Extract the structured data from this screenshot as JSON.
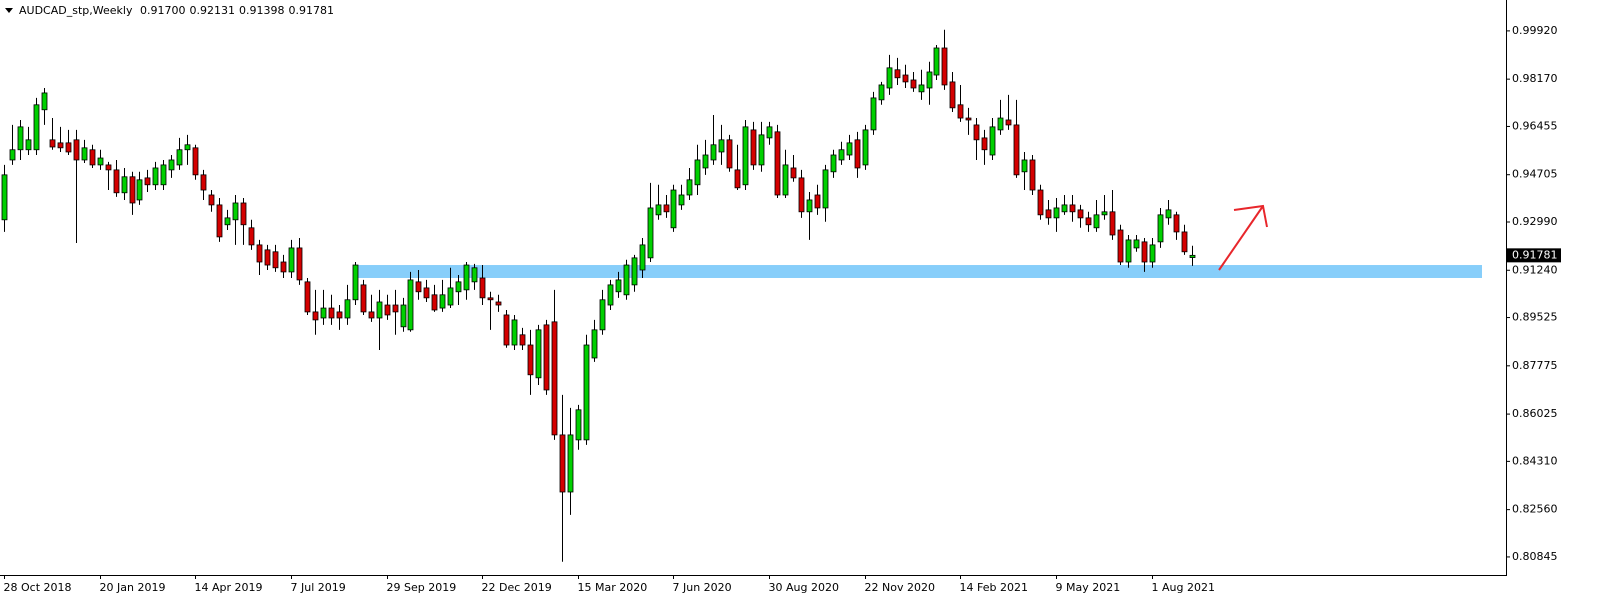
{
  "chart_data": {
    "type": "candlestick",
    "header": "AUDCAD_stp,Weekly",
    "header_values": [
      "0.91700",
      "0.92131",
      "0.91398",
      "0.91781"
    ],
    "up_color": "#00d000",
    "down_color": "#d40000",
    "last_price": {
      "value": 0.91781,
      "label": "0.91781"
    },
    "support_zone": {
      "low": 0.9096,
      "high": 0.9143,
      "color": "#87cefa"
    },
    "ylim": [
      0.8019,
      1.0104
    ],
    "yticks": [
      {
        "value": 0.9992,
        "label": "0.99920"
      },
      {
        "value": 0.9817,
        "label": "0.98170"
      },
      0.96455,
      0.94705,
      {
        "value": 0.9299,
        "label": "0.92990"
      },
      {
        "value": 0.9124,
        "label": "0.91240"
      },
      0.89525,
      0.87775,
      0.86025,
      {
        "value": 0.8431,
        "label": "0.84310"
      },
      {
        "value": 0.8256,
        "label": "0.82560"
      },
      0.80845
    ],
    "categories": [
      "28 Oct 2018",
      null,
      null,
      null,
      null,
      null,
      null,
      null,
      null,
      null,
      null,
      null,
      "20 Jan 2019",
      null,
      null,
      null,
      null,
      null,
      null,
      null,
      null,
      null,
      null,
      null,
      "14 Apr 2019",
      null,
      null,
      null,
      null,
      null,
      null,
      null,
      null,
      null,
      null,
      null,
      "7 Jul 2019",
      null,
      null,
      null,
      null,
      null,
      null,
      null,
      null,
      null,
      null,
      null,
      "29 Sep 2019",
      null,
      null,
      null,
      null,
      null,
      null,
      null,
      null,
      null,
      null,
      null,
      "22 Dec 2019",
      null,
      null,
      null,
      null,
      null,
      null,
      null,
      null,
      null,
      null,
      null,
      "15 Mar 2020",
      null,
      null,
      null,
      null,
      null,
      null,
      null,
      null,
      null,
      null,
      null,
      "7 Jun 2020",
      null,
      null,
      null,
      null,
      null,
      null,
      null,
      null,
      null,
      null,
      null,
      "30 Aug 2020",
      null,
      null,
      null,
      null,
      null,
      null,
      null,
      null,
      null,
      null,
      null,
      "22 Nov 2020",
      null,
      null,
      null,
      null,
      null,
      null,
      null,
      null,
      null,
      null,
      null,
      "14 Feb 2021",
      null,
      null,
      null,
      null,
      null,
      null,
      null,
      null,
      null,
      null,
      null,
      "9 May 2021",
      null,
      null,
      null,
      null,
      null,
      null,
      null,
      null,
      null,
      null,
      null,
      "1 Aug 2021",
      null,
      null,
      null,
      null,
      null
    ],
    "open": [
      0.9307,
      0.9524,
      0.9561,
      0.9561,
      0.9561,
      0.9706,
      0.9597,
      0.9586,
      0.9586,
      0.9597,
      0.9524,
      0.9561,
      0.9506,
      0.9506,
      0.9488,
      0.9405,
      0.9463,
      0.9379,
      0.9459,
      0.9434,
      0.9434,
      0.9488,
      0.9506,
      0.9561,
      0.9568,
      0.947,
      0.9397,
      0.9361,
      0.9289,
      0.9307,
      0.9368,
      0.9278,
      0.9216,
      0.9198,
      0.9191,
      0.9154,
      0.9118,
      0.9205,
      0.9082,
      0.8973,
      0.8951,
      0.8987,
      0.8973,
      0.8951,
      0.9017,
      0.9071,
      0.8973,
      0.8951,
      0.8998,
      0.8998,
      0.8919,
      0.8908,
      0.9082,
      0.906,
      0.9035,
      0.8987,
      0.8998,
      0.9046,
      0.9053,
      0.9082,
      0.9096,
      0.9024,
      0.9009,
      0.8962,
      0.8853,
      0.889,
      0.8853,
      0.8734,
      0.8926,
      0.8937,
      0.8527,
      0.832,
      0.8509,
      0.8509,
      0.8806,
      0.8908,
      0.8998,
      0.9046,
      0.9035,
      0.9071,
      0.9125,
      0.9169,
      0.9325,
      0.9361,
      0.9278,
      0.9361,
      0.9397,
      0.9434,
      0.9495,
      0.9524,
      0.9553,
      0.9597,
      0.9488,
      0.9434,
      0.9633,
      0.9506,
      0.9604,
      0.9626,
      0.9397,
      0.9495,
      0.9459,
      0.9336,
      0.9397,
      0.935,
      0.9481,
      0.9524,
      0.9542,
      0.9597,
      0.9506,
      0.9633,
      0.9742,
      0.9785,
      0.9851,
      0.9832,
      0.9814,
      0.9771,
      0.9785,
      0.9832,
      0.993,
      0.9807,
      0.9724,
      0.9676,
      0.9651,
      0.9604,
      0.9542,
      0.9633,
      0.9669,
      0.9651,
      0.9481,
      0.9524,
      0.9415,
      0.9343,
      0.9314,
      0.9336,
      0.9361,
      0.9343,
      0.9314,
      0.9278,
      0.9325,
      0.9336,
      0.927,
      0.9154,
      0.9205,
      0.9227,
      0.9154,
      0.9227,
      0.9314,
      0.9325,
      0.9263,
      0.917
    ],
    "high": [
      0.9506,
      0.9651,
      0.9669,
      0.9644,
      0.9749,
      0.9785,
      0.9676,
      0.9644,
      0.9633,
      0.9633,
      0.9597,
      0.9579,
      0.9561,
      0.9517,
      0.9524,
      0.9495,
      0.9481,
      0.9481,
      0.9488,
      0.9517,
      0.9524,
      0.9542,
      0.9604,
      0.9615,
      0.9579,
      0.9488,
      0.9415,
      0.9386,
      0.9343,
      0.9397,
      0.9386,
      0.9307,
      0.9234,
      0.9216,
      0.9216,
      0.918,
      0.9234,
      0.9241,
      0.9096,
      0.9053,
      0.9053,
      0.9035,
      0.8998,
      0.9071,
      0.9154,
      0.9089,
      0.9035,
      0.9053,
      0.9035,
      0.9053,
      0.9024,
      0.9118,
      0.9125,
      0.9089,
      0.9071,
      0.9089,
      0.9133,
      0.9107,
      0.9154,
      0.9147,
      0.9143,
      0.9046,
      0.9035,
      0.898,
      0.8962,
      0.8915,
      0.8908,
      0.8926,
      0.8944,
      0.9053,
      0.8672,
      0.8625,
      0.8636,
      0.889,
      0.8944,
      0.9053,
      0.9089,
      0.9118,
      0.9162,
      0.918,
      0.9241,
      0.9441,
      0.9434,
      0.9397,
      0.9434,
      0.9434,
      0.9495,
      0.9579,
      0.9597,
      0.9687,
      0.9651,
      0.9615,
      0.9579,
      0.9669,
      0.9662,
      0.9662,
      0.9662,
      0.9651,
      0.9561,
      0.9542,
      0.9488,
      0.9408,
      0.9434,
      0.9506,
      0.9561,
      0.959,
      0.9615,
      0.9626,
      0.9651,
      0.9771,
      0.9807,
      0.9905,
      0.9894,
      0.9869,
      0.9843,
      0.9851,
      0.988,
      0.9941,
      0.9996,
      0.9843,
      0.9796,
      0.9713,
      0.9676,
      0.9633,
      0.9676,
      0.9742,
      0.976,
      0.9742,
      0.9553,
      0.9542,
      0.9434,
      0.9379,
      0.9386,
      0.9397,
      0.9397,
      0.9361,
      0.9336,
      0.9379,
      0.9397,
      0.9415,
      0.9289,
      0.9252,
      0.9252,
      0.9241,
      0.9241,
      0.935,
      0.9379,
      0.9336,
      0.9289,
      0.92131
    ],
    "low": [
      0.9263,
      0.9506,
      0.9524,
      0.9542,
      0.9542,
      0.9651,
      0.9561,
      0.9553,
      0.9542,
      0.9223,
      0.9513,
      0.9495,
      0.9488,
      0.9415,
      0.939,
      0.9379,
      0.9325,
      0.9361,
      0.9408,
      0.9415,
      0.9415,
      0.9459,
      0.9488,
      0.9506,
      0.9452,
      0.9379,
      0.9336,
      0.9227,
      0.927,
      0.9216,
      0.9216,
      0.9198,
      0.9107,
      0.9125,
      0.9118,
      0.9096,
      0.9096,
      0.9071,
      0.8962,
      0.889,
      0.8926,
      0.8926,
      0.8908,
      0.8926,
      0.8998,
      0.8962,
      0.8937,
      0.8835,
      0.8944,
      0.889,
      0.8901,
      0.8901,
      0.9017,
      0.9009,
      0.8973,
      0.8973,
      0.8987,
      0.8998,
      0.9017,
      0.9053,
      0.8998,
      0.8908,
      0.8973,
      0.8843,
      0.8835,
      0.8835,
      0.8672,
      0.8708,
      0.8672,
      0.8509,
      0.8067,
      0.8237,
      0.8473,
      0.8491,
      0.8792,
      0.889,
      0.898,
      0.9024,
      0.9017,
      0.9046,
      0.9096,
      0.9154,
      0.9307,
      0.9314,
      0.9263,
      0.9343,
      0.9379,
      0.9397,
      0.947,
      0.9506,
      0.9506,
      0.9481,
      0.9415,
      0.9415,
      0.9488,
      0.9481,
      0.9579,
      0.9386,
      0.9386,
      0.9445,
      0.9314,
      0.9234,
      0.9325,
      0.93,
      0.9459,
      0.9506,
      0.9524,
      0.9459,
      0.9488,
      0.9615,
      0.9724,
      0.976,
      0.9796,
      0.9785,
      0.9771,
      0.9742,
      0.9724,
      0.9814,
      0.9778,
      0.9698,
      0.9662,
      0.9615,
      0.9524,
      0.9506,
      0.9524,
      0.9615,
      0.9633,
      0.9459,
      0.9415,
      0.9397,
      0.9307,
      0.9289,
      0.9263,
      0.9325,
      0.93,
      0.9278,
      0.9263,
      0.9263,
      0.9307,
      0.9234,
      0.9143,
      0.9133,
      0.9191,
      0.9118,
      0.9133,
      0.9205,
      0.9289,
      0.9234,
      0.918,
      0.91398
    ],
    "close": [
      0.947,
      0.9561,
      0.9644,
      0.9597,
      0.9724,
      0.9767,
      0.9571,
      0.9568,
      0.9553,
      0.9524,
      0.9568,
      0.9506,
      0.9531,
      0.9488,
      0.9405,
      0.9463,
      0.9368,
      0.9452,
      0.9434,
      0.9495,
      0.9506,
      0.9524,
      0.9561,
      0.9579,
      0.947,
      0.9415,
      0.9361,
      0.9245,
      0.9314,
      0.9368,
      0.9289,
      0.9216,
      0.9154,
      0.9143,
      0.9133,
      0.9118,
      0.9205,
      0.9089,
      0.8973,
      0.8944,
      0.8987,
      0.8951,
      0.8951,
      0.9017,
      0.9143,
      0.8973,
      0.8951,
      0.9009,
      0.8962,
      0.8973,
      0.8998,
      0.9089,
      0.9046,
      0.9024,
      0.898,
      0.9035,
      0.906,
      0.9082,
      0.9143,
      0.9133,
      0.9024,
      0.9017,
      0.8998,
      0.8853,
      0.8944,
      0.8853,
      0.8745,
      0.8908,
      0.869,
      0.8527,
      0.832,
      0.8527,
      0.8618,
      0.8853,
      0.8908,
      0.9017,
      0.9071,
      0.9089,
      0.9143,
      0.9169,
      0.9216,
      0.935,
      0.9361,
      0.9336,
      0.9415,
      0.9397,
      0.9452,
      0.9524,
      0.9542,
      0.9579,
      0.9597,
      0.9495,
      0.9423,
      0.9644,
      0.9506,
      0.9615,
      0.9644,
      0.9397,
      0.9506,
      0.9459,
      0.9336,
      0.9379,
      0.935,
      0.9488,
      0.9542,
      0.9561,
      0.9586,
      0.9495,
      0.9633,
      0.9749,
      0.9796,
      0.9858,
      0.9822,
      0.9807,
      0.9785,
      0.9796,
      0.9843,
      0.993,
      0.9796,
      0.9713,
      0.9676,
      0.9669,
      0.9597,
      0.9561,
      0.9644,
      0.9676,
      0.9651,
      0.947,
      0.9524,
      0.9415,
      0.9325,
      0.9314,
      0.935,
      0.9361,
      0.9336,
      0.9314,
      0.9289,
      0.9325,
      0.9336,
      0.9252,
      0.9154,
      0.9234,
      0.9234,
      0.9154,
      0.9216,
      0.9325,
      0.9343,
      0.9263,
      0.9191,
      0.91781
    ]
  }
}
